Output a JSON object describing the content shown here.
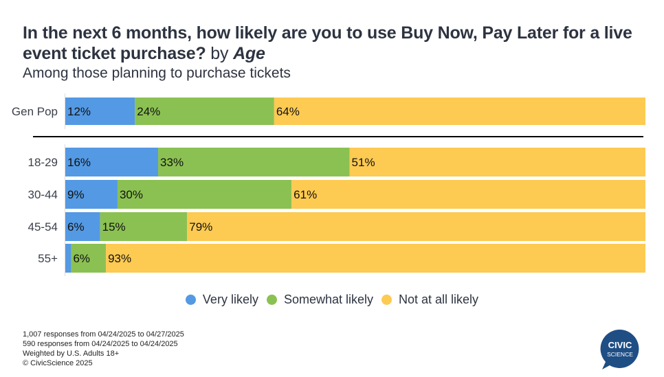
{
  "header": {
    "title_main": "In the next 6 months, how likely are you to use Buy Now, Pay Later for a live event ticket purchase?",
    "title_by": "by",
    "title_by_variable": "Age",
    "subtitle": "Among those planning to purchase tickets"
  },
  "chart_data": {
    "type": "bar",
    "orientation": "horizontal",
    "stacked": true,
    "title": "In the next 6 months, how likely are you to use Buy Now, Pay Later for a live event ticket purchase? by Age",
    "subtitle": "Among those planning to purchase tickets",
    "xlabel": "",
    "ylabel": "",
    "xlim": [
      0,
      100
    ],
    "grid": false,
    "legend_position": "bottom",
    "categories": [
      "Gen Pop",
      "18-29",
      "30-44",
      "45-54",
      "55+"
    ],
    "separator_after": "Gen Pop",
    "series": [
      {
        "name": "Very likely",
        "color": "#5499e3",
        "values": [
          12,
          16,
          9,
          6,
          1
        ],
        "labels": [
          "12%",
          "16%",
          "9%",
          "6%",
          ""
        ]
      },
      {
        "name": "Somewhat likely",
        "color": "#8bc152",
        "values": [
          24,
          33,
          30,
          15,
          6
        ],
        "labels": [
          "24%",
          "33%",
          "30%",
          "15%",
          "6%"
        ]
      },
      {
        "name": "Not at all likely",
        "color": "#fdca52",
        "values": [
          64,
          51,
          61,
          79,
          93
        ],
        "labels": [
          "64%",
          "51%",
          "61%",
          "79%",
          "93%"
        ]
      }
    ]
  },
  "legend": [
    {
      "label": "Very likely",
      "color": "#5499e3"
    },
    {
      "label": "Somewhat likely",
      "color": "#8bc152"
    },
    {
      "label": "Not at all likely",
      "color": "#fdca52"
    }
  ],
  "footnotes": [
    "1,007 responses from 04/24/2025 to 04/27/2025",
    "590 responses from 04/24/2025 to 04/24/2025",
    "Weighted by U.S. Adults 18+",
    "© CivicScience 2025"
  ],
  "logo": {
    "line1": "CIVIC",
    "line2": "SCIENCE",
    "color": "#1f4e85"
  }
}
